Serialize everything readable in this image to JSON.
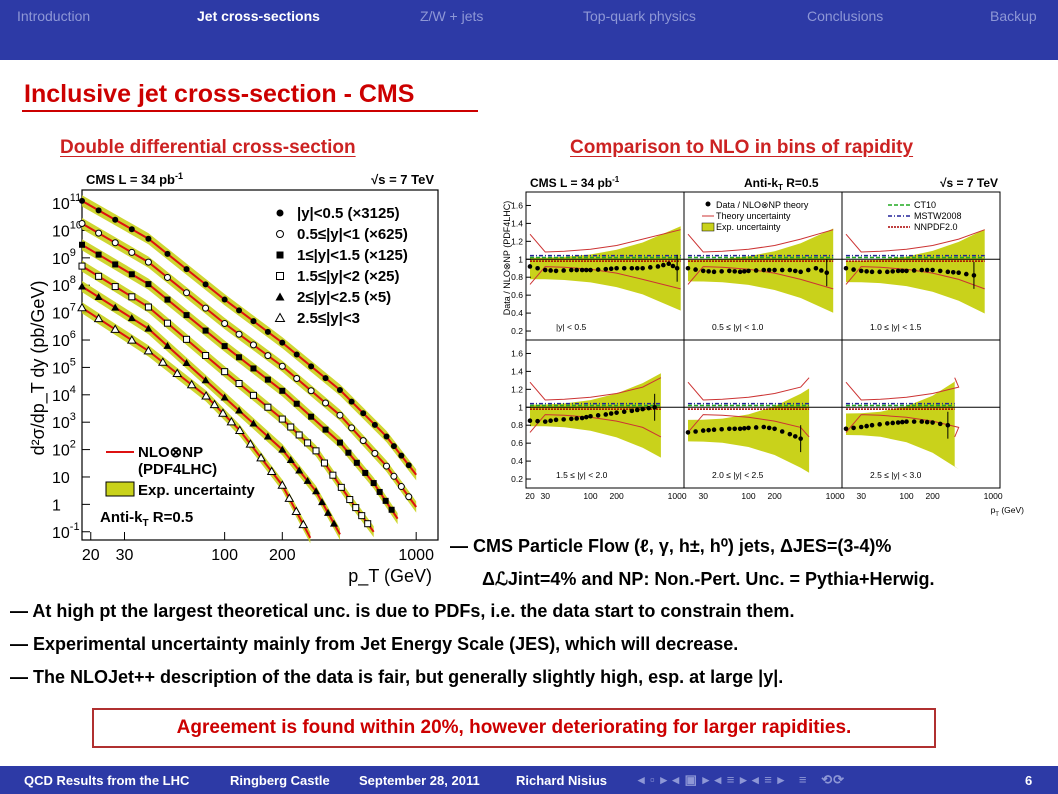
{
  "nav": {
    "items": [
      "Introduction",
      "Jet cross-sections",
      "Z/W + jets",
      "Top-quark physics",
      "Conclusions",
      "Backup"
    ],
    "active": 1
  },
  "slide": {
    "title": "Inclusive jet cross-section - CMS",
    "left_subtitle": "Double differential cross-section",
    "right_subtitle": "Comparison to NLO in bins of rapidity"
  },
  "chart_data": [
    {
      "type": "scatter",
      "title_left": "CMS   L = 34 pb",
      "title_left_sup": "-1",
      "title_right": "√s = 7 TeV",
      "ylabel": "d²σ/dp_T dy (pb/GeV)",
      "xlabel": "p_T (GeV)",
      "xscale": "log",
      "yscale": "log",
      "xlim": [
        18,
        1300
      ],
      "ylim": [
        0.05,
        300000000000.0
      ],
      "xticks": [
        {
          "v": 20,
          "label": "20"
        },
        {
          "v": 30,
          "label": "30"
        },
        {
          "v": 100,
          "label": "100"
        },
        {
          "v": 200,
          "label": "200"
        },
        {
          "v": 1000,
          "label": "1000"
        }
      ],
      "yticks": [
        {
          "v": 100000000000.0,
          "b": "10",
          "e": "11"
        },
        {
          "v": 10000000000.0,
          "b": "10",
          "e": "10"
        },
        {
          "v": 1000000000.0,
          "b": "10",
          "e": "9"
        },
        {
          "v": 100000000.0,
          "b": "10",
          "e": "8"
        },
        {
          "v": 10000000.0,
          "b": "10",
          "e": "7"
        },
        {
          "v": 1000000.0,
          "b": "10",
          "e": "6"
        },
        {
          "v": 100000.0,
          "b": "10",
          "e": "5"
        },
        {
          "v": 10000.0,
          "b": "10",
          "e": "4"
        },
        {
          "v": 1000.0,
          "b": "10",
          "e": "3"
        },
        {
          "v": 100.0,
          "b": "10",
          "e": "2"
        },
        {
          "v": 10,
          "b": "10",
          "e": ""
        },
        {
          "v": 1,
          "b": "1",
          "e": ""
        },
        {
          "v": 0.1,
          "b": "10",
          "e": "-1"
        }
      ],
      "legend_markers": [
        "|y|<0.5 (×3125)",
        "0.5≤|y|<1 (×625)",
        "1≤|y|<1.5 (×125)",
        "1.5≤|y|<2 (×25)",
        "2≤|y|<2.5 (×5)",
        "2.5≤|y|<3"
      ],
      "legend_theory": [
        "NLO⊗NP",
        "(PDF4LHC)",
        "Exp. uncertainty"
      ],
      "anti_kt": "Anti-k",
      "anti_kt_sub": "T",
      "anti_kt_rest": " R=0.5",
      "series": [
        {
          "name": "|y|<0.5 (×3125)",
          "marker": "filled-circle",
          "x": [
            18,
            40,
            100,
            200,
            400,
            700,
            1000
          ],
          "y": [
            120000000000.0,
            5000000000.0,
            30000000.0,
            800000.0,
            15000.0,
            300,
            12
          ]
        },
        {
          "name": "0.5≤|y|<1 (×625)",
          "marker": "open-circle",
          "x": [
            18,
            40,
            100,
            200,
            400,
            700,
            1000
          ],
          "y": [
            18000000000.0,
            700000000.0,
            4000000.0,
            110000.0,
            1800.0,
            25,
            0.8
          ]
        },
        {
          "name": "1≤|y|<1.5 (×125)",
          "marker": "filled-square",
          "x": [
            18,
            40,
            100,
            200,
            400,
            600,
            800
          ],
          "y": [
            3000000000.0,
            110000000.0,
            600000.0,
            14000.0,
            180,
            6,
            0.3
          ]
        },
        {
          "name": "1.5≤|y|<2 (×25)",
          "marker": "open-square",
          "x": [
            18,
            40,
            100,
            200,
            300,
            450,
            600
          ],
          "y": [
            500000000.0,
            16000000.0,
            70000.0,
            1300,
            90,
            1.5,
            0.1
          ]
        },
        {
          "name": "2≤|y|<2.5 (×5)",
          "marker": "filled-triangle",
          "x": [
            18,
            40,
            100,
            200,
            300,
            400
          ],
          "y": [
            90000000.0,
            2600000.0,
            8000.0,
            100,
            3,
            0.08
          ]
        },
        {
          "name": "2.5≤|y|<3",
          "marker": "open-triangle",
          "x": [
            18,
            40,
            80,
            120,
            200,
            280
          ],
          "y": [
            15000000.0,
            400000.0,
            9000.0,
            500,
            5,
            0.06
          ]
        }
      ]
    },
    {
      "type": "scatter",
      "title_left": "CMS   L = 34 pb",
      "title_left_sup": "-1",
      "title_mid": "Anti-k",
      "title_mid_sub": "T",
      "title_mid_rest": " R=0.5",
      "title_right": "√s = 7 TeV",
      "ylabel": "Data / NLO⊗NP (PDF4LHC)",
      "xlabel": "p_T (GeV)",
      "xscale": "log",
      "xlim": [
        18,
        1200
      ],
      "ylim": [
        0.1,
        1.75
      ],
      "yticks": [
        0.2,
        0.4,
        0.6,
        0.8,
        1,
        1.2,
        1.4,
        1.6
      ],
      "xticks": [
        {
          "v": 20,
          "label": "20"
        },
        {
          "v": 30,
          "label": "30"
        },
        {
          "v": 100,
          "label": "100"
        },
        {
          "v": 200,
          "label": "200"
        },
        {
          "v": 1000,
          "label": "1000"
        }
      ],
      "legend_left": [
        "Data / NLO⊗NP theory",
        "Theory uncertainty",
        "Exp. uncertainty"
      ],
      "legend_right": [
        "CT10",
        "MSTW2008",
        "NNPDF2.0"
      ],
      "colors": {
        "band": "#c9d21b",
        "theory": "#cc3333",
        "ct10": "#22aa22",
        "mstw": "#222299",
        "nnpdf": "#aa0000"
      },
      "panels": [
        {
          "label": "|y| < 0.5",
          "xmax": 1100,
          "x": [
            20,
            30,
            40,
            60,
            80,
            100,
            150,
            200,
            300,
            400,
            600,
            800,
            1000
          ],
          "y": [
            0.92,
            0.88,
            0.87,
            0.88,
            0.88,
            0.88,
            0.89,
            0.9,
            0.9,
            0.9,
            0.92,
            0.95,
            0.9
          ]
        },
        {
          "label": "0.5 ≤ |y| < 1.0",
          "xmax": 950,
          "x": [
            20,
            30,
            40,
            60,
            80,
            100,
            150,
            200,
            300,
            400,
            600,
            800
          ],
          "y": [
            0.9,
            0.87,
            0.86,
            0.87,
            0.86,
            0.87,
            0.88,
            0.88,
            0.88,
            0.86,
            0.9,
            0.85
          ]
        },
        {
          "label": "1.0 ≤ |y| < 1.5",
          "xmax": 800,
          "x": [
            20,
            30,
            40,
            60,
            80,
            100,
            150,
            200,
            300,
            400,
            600
          ],
          "y": [
            0.9,
            0.87,
            0.86,
            0.86,
            0.87,
            0.87,
            0.88,
            0.88,
            0.86,
            0.85,
            0.82
          ]
        },
        {
          "label": "1.5 ≤ |y| < 2.0",
          "xmax": 650,
          "x": [
            20,
            30,
            40,
            60,
            80,
            100,
            150,
            200,
            300,
            400,
            550
          ],
          "y": [
            0.85,
            0.84,
            0.86,
            0.87,
            0.88,
            0.9,
            0.92,
            0.94,
            0.96,
            0.98,
            1.0
          ]
        },
        {
          "label": "2.0 ≤ |y| < 2.5",
          "xmax": 500,
          "x": [
            20,
            30,
            40,
            60,
            80,
            100,
            150,
            200,
            300,
            400
          ],
          "y": [
            0.72,
            0.74,
            0.75,
            0.76,
            0.76,
            0.77,
            0.78,
            0.76,
            0.7,
            0.65
          ]
        },
        {
          "label": "2.5 ≤ |y| < 3.0",
          "xmax": 360,
          "x": [
            20,
            30,
            40,
            60,
            80,
            100,
            150,
            200,
            300
          ],
          "y": [
            0.76,
            0.78,
            0.8,
            0.82,
            0.83,
            0.84,
            0.84,
            0.83,
            0.8
          ]
        }
      ]
    }
  ],
  "bullets": {
    "pf": "— CMS Particle Flow (ℓ, γ, h±, h⁰) jets, ΔJES=(3-4)%",
    "lumi": "ΔℒJint=4% and NP: Non.-Pert. Unc. = Pythia+Herwig.",
    "items": [
      "— At high pt the largest theoretical unc. is due to PDFs, i.e. the data start to constrain them.",
      "— Experimental uncertainty mainly from Jet Energy Scale (JES), which will decrease.",
      "— The NLOJet++ description of the data is fair, but generally slightly high, esp. at large |y|."
    ]
  },
  "conclusion": "Agreement is found within 20%, however deteriorating for larger rapidities.",
  "footer": {
    "talk": "QCD Results from the LHC",
    "venue": "Ringberg Castle",
    "date": "September 28, 2011",
    "author": "Richard Nisius",
    "page": "6"
  }
}
